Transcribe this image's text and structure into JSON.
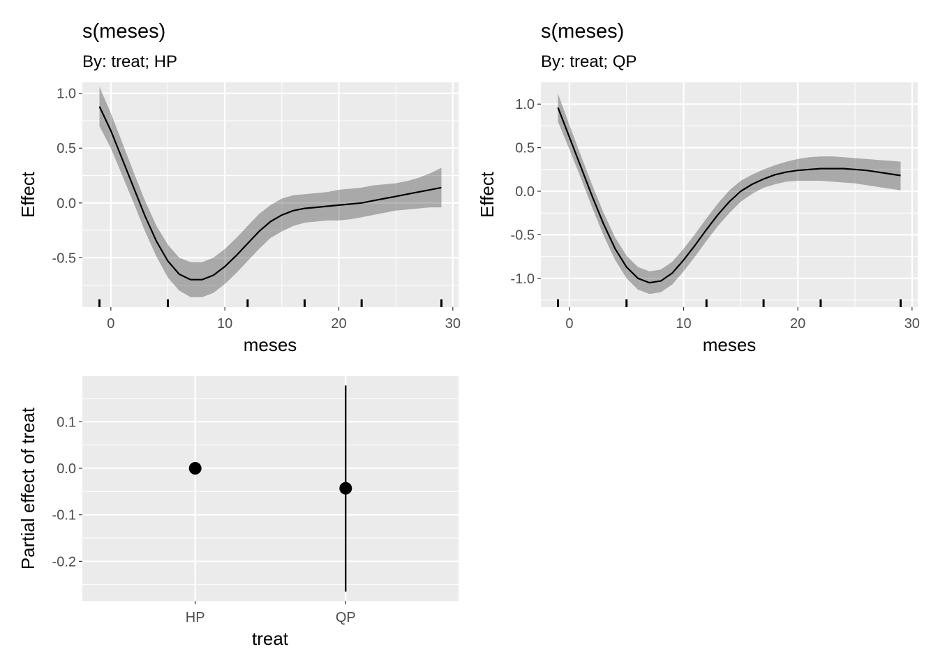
{
  "chart_data": [
    {
      "type": "line",
      "title": "s(meses)",
      "subtitle": "By: treat; HP",
      "xlabel": "meses",
      "ylabel": "Effect",
      "xlim": [
        -2.5,
        30.5
      ],
      "ylim": [
        -0.95,
        1.1
      ],
      "xticks": [
        0,
        10,
        20,
        30
      ],
      "xtick_labels": [
        "0",
        "10",
        "20",
        "30"
      ],
      "yticks": [
        1.0,
        0.5,
        0.0,
        -0.5
      ],
      "ytick_labels": [
        "1.0",
        "0.5",
        "0.0",
        "-0.5"
      ],
      "grid": true,
      "rug": [
        -1,
        5,
        12,
        17,
        22,
        29
      ],
      "series": [
        {
          "x": [
            -1,
            0,
            1,
            2,
            3,
            4,
            5,
            6,
            7,
            8,
            9,
            10,
            11,
            12,
            13,
            14,
            15,
            16,
            17,
            18,
            19,
            20,
            21,
            22,
            23,
            24,
            25,
            26,
            27,
            28,
            29
          ],
          "y": [
            0.88,
            0.66,
            0.4,
            0.14,
            -0.12,
            -0.35,
            -0.53,
            -0.65,
            -0.7,
            -0.7,
            -0.66,
            -0.58,
            -0.48,
            -0.37,
            -0.26,
            -0.17,
            -0.11,
            -0.07,
            -0.05,
            -0.04,
            -0.03,
            -0.02,
            -0.01,
            0.0,
            0.02,
            0.04,
            0.06,
            0.08,
            0.1,
            0.12,
            0.14
          ],
          "lower": [
            0.7,
            0.5,
            0.25,
            0.0,
            -0.26,
            -0.49,
            -0.68,
            -0.8,
            -0.86,
            -0.86,
            -0.82,
            -0.74,
            -0.64,
            -0.53,
            -0.42,
            -0.32,
            -0.26,
            -0.21,
            -0.18,
            -0.17,
            -0.16,
            -0.16,
            -0.15,
            -0.13,
            -0.11,
            -0.09,
            -0.07,
            -0.06,
            -0.05,
            -0.04,
            -0.04
          ],
          "upper": [
            1.06,
            0.82,
            0.55,
            0.28,
            0.02,
            -0.21,
            -0.38,
            -0.5,
            -0.54,
            -0.54,
            -0.5,
            -0.42,
            -0.32,
            -0.21,
            -0.1,
            -0.02,
            0.04,
            0.07,
            0.08,
            0.09,
            0.1,
            0.12,
            0.13,
            0.14,
            0.16,
            0.17,
            0.18,
            0.2,
            0.23,
            0.27,
            0.32
          ]
        }
      ]
    },
    {
      "type": "line",
      "title": "s(meses)",
      "subtitle": "By: treat; QP",
      "xlabel": "meses",
      "ylabel": "Effect",
      "xlim": [
        -2.5,
        30.5
      ],
      "ylim": [
        -1.33,
        1.25
      ],
      "xticks": [
        0,
        10,
        20,
        30
      ],
      "xtick_labels": [
        "0",
        "10",
        "20",
        "30"
      ],
      "yticks": [
        1.0,
        0.5,
        0.0,
        -0.5,
        -1.0
      ],
      "ytick_labels": [
        "1.0",
        "0.5",
        "0.0",
        "-0.5",
        "-1.0"
      ],
      "grid": true,
      "rug": [
        -1,
        5,
        12,
        17,
        22,
        29
      ],
      "series": [
        {
          "x": [
            -1,
            0,
            1,
            2,
            3,
            4,
            5,
            6,
            7,
            8,
            9,
            10,
            11,
            12,
            13,
            14,
            15,
            16,
            17,
            18,
            19,
            20,
            21,
            22,
            23,
            24,
            25,
            26,
            27,
            28,
            29
          ],
          "y": [
            0.96,
            0.62,
            0.28,
            -0.06,
            -0.38,
            -0.66,
            -0.87,
            -1.0,
            -1.05,
            -1.03,
            -0.94,
            -0.79,
            -0.62,
            -0.44,
            -0.27,
            -0.12,
            -0.0,
            0.08,
            0.14,
            0.19,
            0.22,
            0.24,
            0.25,
            0.26,
            0.26,
            0.26,
            0.25,
            0.24,
            0.22,
            0.2,
            0.18
          ],
          "lower": [
            0.8,
            0.48,
            0.15,
            -0.19,
            -0.51,
            -0.79,
            -1.0,
            -1.13,
            -1.18,
            -1.16,
            -1.07,
            -0.92,
            -0.75,
            -0.57,
            -0.4,
            -0.25,
            -0.12,
            -0.03,
            0.04,
            0.08,
            0.11,
            0.12,
            0.12,
            0.12,
            0.11,
            0.1,
            0.09,
            0.07,
            0.05,
            0.03,
            0.01
          ],
          "upper": [
            1.12,
            0.76,
            0.41,
            0.07,
            -0.25,
            -0.53,
            -0.74,
            -0.87,
            -0.92,
            -0.9,
            -0.81,
            -0.66,
            -0.49,
            -0.31,
            -0.14,
            0.01,
            0.12,
            0.19,
            0.25,
            0.3,
            0.34,
            0.37,
            0.39,
            0.4,
            0.4,
            0.39,
            0.38,
            0.37,
            0.36,
            0.35,
            0.34
          ]
        }
      ]
    },
    {
      "type": "scatter",
      "xlabel": "treat",
      "ylabel": "Partial effect of treat",
      "categories": [
        "HP",
        "QP"
      ],
      "ylim": [
        -0.285,
        0.198
      ],
      "yticks": [
        0.1,
        0.0,
        -0.1,
        -0.2
      ],
      "ytick_labels": [
        "0.1",
        "0.0",
        "-0.1",
        "-0.2"
      ],
      "grid": true,
      "points": [
        {
          "category": "HP",
          "value": 0.0,
          "lower": 0.0,
          "upper": 0.0
        },
        {
          "category": "QP",
          "value": -0.043,
          "lower": -0.265,
          "upper": 0.178
        }
      ]
    }
  ]
}
